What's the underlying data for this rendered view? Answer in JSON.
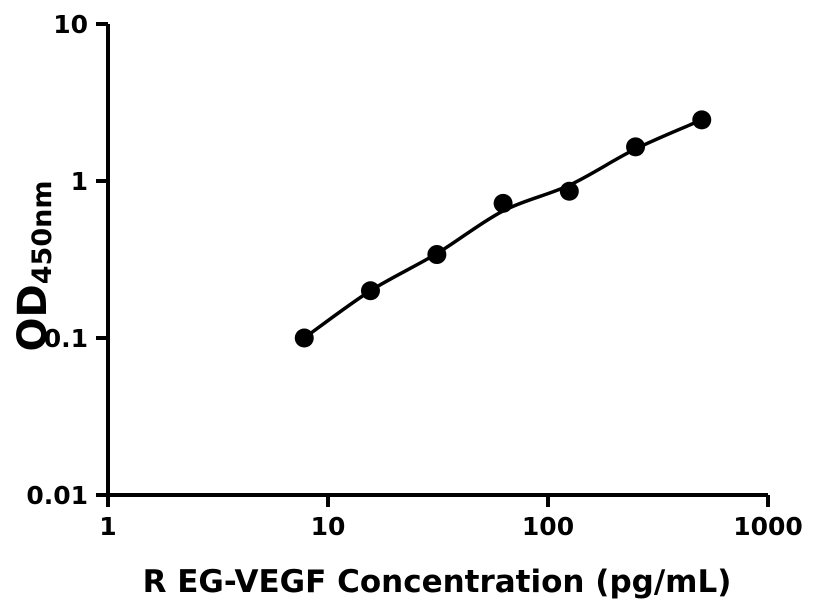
{
  "page": {
    "background": "#ffffff"
  },
  "chart_data": {
    "type": "scatter",
    "title": "",
    "xlabel": "R EG-VEGF Concentration (pg/mL)",
    "ylabel": "OD",
    "ylabel_subscript": "450nm",
    "x_scale": "log10",
    "y_scale": "log10",
    "xlim": [
      1,
      1000
    ],
    "ylim": [
      0.01,
      10
    ],
    "x_ticks": [
      {
        "value": 1,
        "label": "1"
      },
      {
        "value": 10,
        "label": "10"
      },
      {
        "value": 100,
        "label": "100"
      },
      {
        "value": 1000,
        "label": "1000"
      }
    ],
    "y_ticks": [
      {
        "value": 10,
        "label": "10"
      },
      {
        "value": 1,
        "label": "1"
      },
      {
        "value": 0.1,
        "label": "0.1"
      },
      {
        "value": 0.01,
        "label": "0.01"
      }
    ],
    "grid": false,
    "legend": "none",
    "axis_color": "#000000",
    "marker_color": "#000000",
    "line_color": "#000000",
    "series": [
      {
        "name": "standard-points",
        "type": "scatter",
        "x": [
          7.8,
          15.6,
          31.25,
          62.5,
          125,
          250,
          500
        ],
        "y": [
          0.1,
          0.2,
          0.34,
          0.72,
          0.86,
          1.65,
          2.45
        ]
      },
      {
        "name": "fitted-curve",
        "type": "line",
        "x": [
          7.8,
          15.6,
          31.25,
          62.5,
          125,
          250,
          500
        ],
        "y": [
          0.1,
          0.2,
          0.345,
          0.645,
          0.94,
          1.6,
          2.45
        ]
      }
    ]
  }
}
